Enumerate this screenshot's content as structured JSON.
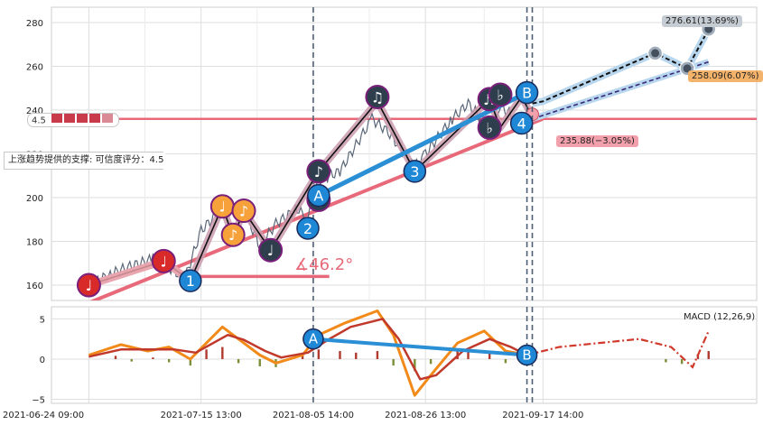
{
  "chart_data": {
    "type": "line",
    "main": {
      "ylim": [
        153,
        287
      ],
      "y_ticks": [
        160,
        180,
        200,
        220,
        240,
        260,
        280
      ],
      "price_series": [
        [
          "2021-06-24",
          160
        ],
        [
          "2021-06-28",
          165
        ],
        [
          "2021-07-01",
          168
        ],
        [
          "2021-07-06",
          172
        ],
        [
          "2021-07-09",
          168
        ],
        [
          "2021-07-12",
          163
        ],
        [
          "2021-07-15",
          185
        ],
        [
          "2021-07-19",
          195
        ],
        [
          "2021-07-21",
          183
        ],
        [
          "2021-07-23",
          194
        ],
        [
          "2021-07-26",
          178
        ],
        [
          "2021-07-29",
          188
        ],
        [
          "2021-08-02",
          195
        ],
        [
          "2021-08-04",
          190
        ],
        [
          "2021-08-06",
          208
        ],
        [
          "2021-08-10",
          212
        ],
        [
          "2021-08-16",
          236
        ],
        [
          "2021-08-19",
          230
        ],
        [
          "2021-08-24",
          214
        ],
        [
          "2021-08-26",
          220
        ],
        [
          "2021-08-31",
          236
        ],
        [
          "2021-09-03",
          243
        ],
        [
          "2021-09-07",
          232
        ],
        [
          "2021-09-09",
          242
        ],
        [
          "2021-09-13",
          234
        ],
        [
          "2021-09-15",
          240
        ]
      ],
      "zigzag": [
        [
          "2021-06-24",
          160
        ],
        [
          "2021-07-08",
          171
        ],
        [
          "2021-07-13",
          162
        ],
        [
          "2021-07-19",
          196
        ],
        [
          "2021-07-21",
          182
        ],
        [
          "2021-07-23",
          194
        ],
        [
          "2021-07-28",
          176
        ],
        [
          "2021-08-06",
          212
        ],
        [
          "2021-08-17",
          244
        ],
        [
          "2021-08-24",
          212
        ],
        [
          "2021-09-07",
          245
        ],
        [
          "2021-09-09",
          232
        ],
        [
          "2021-09-13",
          246
        ],
        [
          "2021-09-15",
          237
        ]
      ],
      "note_markers": [
        {
          "x": "2021-06-24",
          "y": 160,
          "glyph": "♩",
          "style": "red"
        },
        {
          "x": "2021-07-08",
          "y": 171,
          "glyph": "♩",
          "style": "red"
        },
        {
          "x": "2021-07-19",
          "y": 196,
          "glyph": "♩",
          "style": "orange"
        },
        {
          "x": "2021-07-21",
          "y": 183,
          "glyph": "♪",
          "style": "orange"
        },
        {
          "x": "2021-07-23",
          "y": 194,
          "glyph": "♪",
          "style": "orange"
        },
        {
          "x": "2021-07-28",
          "y": 176,
          "glyph": "♩",
          "style": "dark"
        },
        {
          "x": "2021-08-06",
          "y": 212,
          "glyph": "♪",
          "style": "dark"
        },
        {
          "x": "2021-08-06",
          "y": 199,
          "glyph": "♫",
          "style": "dark"
        },
        {
          "x": "2021-08-17",
          "y": 246,
          "glyph": "♫",
          "style": "dark"
        },
        {
          "x": "2021-09-07",
          "y": 245,
          "glyph": "♬",
          "style": "dark"
        },
        {
          "x": "2021-09-09",
          "y": 247,
          "glyph": "♭",
          "style": "dark"
        },
        {
          "x": "2021-09-07",
          "y": 232,
          "glyph": "♭",
          "style": "dark"
        }
      ],
      "wave_labels": [
        {
          "x": "2021-07-13",
          "y": 162,
          "label": "1"
        },
        {
          "x": "2021-08-04",
          "y": 186,
          "label": "2"
        },
        {
          "x": "2021-08-24",
          "y": 212,
          "label": "3"
        },
        {
          "x": "2021-09-13",
          "y": 234,
          "label": "4"
        },
        {
          "x": "2021-08-06",
          "y": 201,
          "label": "A"
        },
        {
          "x": "2021-09-14",
          "y": 248,
          "label": "B"
        }
      ],
      "support_line": {
        "from": [
          "2021-06-20",
          148
        ],
        "to": [
          "2021-09-17",
          236
        ]
      },
      "blue_trend": {
        "from": [
          "2021-08-06",
          201
        ],
        "to": [
          "2021-09-14",
          248
        ]
      },
      "horizontal_line": {
        "y": 236,
        "left_label": "4.5"
      },
      "angle_label": "∡46.2°",
      "angle_baseline": {
        "from": [
          "2021-07-13",
          164
        ],
        "to": [
          "2021-08-08",
          164
        ]
      },
      "support_annotation": "上涨趋势提供的支撑: 可信度评分：4.5",
      "projections": {
        "upper": [
          [
            "2021-09-15",
            243
          ],
          [
            "2021-09-17",
            244
          ],
          [
            "2021-10-08",
            266
          ],
          [
            "2021-10-14",
            259
          ],
          [
            "2021-10-18",
            277
          ]
        ],
        "lower": [
          [
            "2021-09-15",
            236
          ],
          [
            "2021-10-18",
            262
          ]
        ],
        "upper_label": "276.61(13.69%)",
        "lower_label": "258.09(6.07%)",
        "current_label": "235.88(−3.05%)"
      },
      "vlines": [
        "2021-08-05",
        "2021-09-14",
        "2021-09-15"
      ]
    },
    "macd": {
      "title": "MACD (12,26,9)",
      "ylim": [
        -5.5,
        6.5
      ],
      "y_ticks": [
        5,
        0,
        -5
      ],
      "macd_line": [
        [
          "2021-06-24",
          0.5
        ],
        [
          "2021-06-30",
          1.8
        ],
        [
          "2021-07-05",
          1.0
        ],
        [
          "2021-07-09",
          1.5
        ],
        [
          "2021-07-13",
          0.0
        ],
        [
          "2021-07-19",
          4.0
        ],
        [
          "2021-07-22",
          2.5
        ],
        [
          "2021-07-26",
          0.5
        ],
        [
          "2021-07-29",
          -0.5
        ],
        [
          "2021-08-03",
          0.5
        ],
        [
          "2021-08-06",
          3.0
        ],
        [
          "2021-08-11",
          4.5
        ],
        [
          "2021-08-17",
          6.0
        ],
        [
          "2021-08-20",
          3.0
        ],
        [
          "2021-08-24",
          -4.5
        ],
        [
          "2021-08-27",
          -2.0
        ],
        [
          "2021-09-01",
          2.0
        ],
        [
          "2021-09-06",
          3.5
        ],
        [
          "2021-09-10",
          1.0
        ],
        [
          "2021-09-14",
          0.5
        ]
      ],
      "signal_line": [
        [
          "2021-06-24",
          0.3
        ],
        [
          "2021-06-30",
          1.2
        ],
        [
          "2021-07-06",
          1.2
        ],
        [
          "2021-07-10",
          1.2
        ],
        [
          "2021-07-14",
          0.8
        ],
        [
          "2021-07-20",
          3.0
        ],
        [
          "2021-07-23",
          2.4
        ],
        [
          "2021-07-27",
          1.0
        ],
        [
          "2021-07-30",
          0.2
        ],
        [
          "2021-08-04",
          0.8
        ],
        [
          "2021-08-08",
          2.5
        ],
        [
          "2021-08-12",
          4.0
        ],
        [
          "2021-08-18",
          5.0
        ],
        [
          "2021-08-21",
          2.5
        ],
        [
          "2021-08-25",
          -2.5
        ],
        [
          "2021-08-28",
          -2.0
        ],
        [
          "2021-09-02",
          1.0
        ],
        [
          "2021-09-07",
          2.5
        ],
        [
          "2021-09-11",
          1.5
        ],
        [
          "2021-09-14",
          0.5
        ]
      ],
      "histogram": [
        [
          "2021-06-29",
          0.4
        ],
        [
          "2021-07-02",
          -0.3
        ],
        [
          "2021-07-06",
          0.2
        ],
        [
          "2021-07-09",
          -0.4
        ],
        [
          "2021-07-13",
          -0.8
        ],
        [
          "2021-07-16",
          1.2
        ],
        [
          "2021-07-19",
          1.5
        ],
        [
          "2021-07-22",
          -0.5
        ],
        [
          "2021-07-26",
          -0.9
        ],
        [
          "2021-07-29",
          -1.0
        ],
        [
          "2021-08-03",
          0.6
        ],
        [
          "2021-08-06",
          1.2
        ],
        [
          "2021-08-10",
          1.0
        ],
        [
          "2021-08-13",
          0.8
        ],
        [
          "2021-08-17",
          1.0
        ],
        [
          "2021-08-20",
          -0.8
        ],
        [
          "2021-08-24",
          -1.5
        ],
        [
          "2021-08-27",
          -0.6
        ],
        [
          "2021-09-01",
          1.0
        ],
        [
          "2021-09-03",
          1.2
        ],
        [
          "2021-09-07",
          0.8
        ],
        [
          "2021-09-10",
          -0.5
        ],
        [
          "2021-09-14",
          -0.3
        ],
        [
          "2021-10-10",
          -0.4
        ],
        [
          "2021-10-13",
          -0.6
        ],
        [
          "2021-10-16",
          0.6
        ],
        [
          "2021-10-18",
          1.0
        ]
      ],
      "trend": {
        "from": [
          "2021-08-05",
          2.5
        ],
        "to": [
          "2021-09-14",
          0.5
        ]
      },
      "trend_labels": [
        {
          "x": "2021-08-05",
          "y": 2.5,
          "label": "A"
        },
        {
          "x": "2021-09-14",
          "y": 0.5,
          "label": "B"
        }
      ],
      "projection": [
        [
          "2021-09-14",
          0.5
        ],
        [
          "2021-09-20",
          1.5
        ],
        [
          "2021-10-05",
          2.5
        ],
        [
          "2021-10-11",
          1.5
        ],
        [
          "2021-10-15",
          -1.0
        ],
        [
          "2021-10-18",
          3.5
        ]
      ]
    },
    "x_ticks": [
      {
        "date": "2021-06-24",
        "label": "2021-06-24 09:00"
      },
      {
        "date": "2021-07-15",
        "label": "2021-07-15 13:00"
      },
      {
        "date": "2021-08-05",
        "label": "2021-08-05 14:00"
      },
      {
        "date": "2021-08-26",
        "label": "2021-08-26 13:00"
      },
      {
        "date": "2021-09-17",
        "label": "2021-09-17 14:00"
      }
    ],
    "x_range": [
      "2021-06-17",
      "2021-10-27"
    ]
  }
}
